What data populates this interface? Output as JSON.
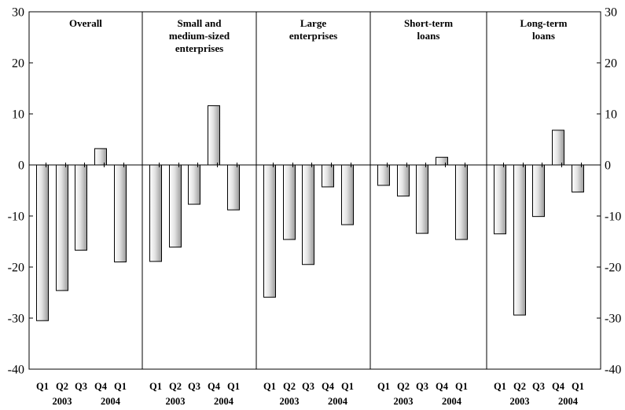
{
  "chart_data": {
    "type": "bar",
    "categories": [
      "Q1",
      "Q2",
      "Q3",
      "Q4",
      "Q1"
    ],
    "year_labels": [
      "2003",
      "2004"
    ],
    "ylim": [
      -40,
      30
    ],
    "yticks": [
      30,
      20,
      10,
      0,
      -10,
      -20,
      -30,
      -40
    ],
    "grid": false,
    "panels": [
      {
        "title": [
          "Overall"
        ],
        "values": [
          -30.5,
          -24.6,
          -16.7,
          3.2,
          -19.0
        ]
      },
      {
        "title": [
          "Small and",
          "medium-sized",
          "enterprises"
        ],
        "values": [
          -18.9,
          -16.1,
          -7.7,
          11.6,
          -8.8
        ]
      },
      {
        "title": [
          "Large",
          "enterprises"
        ],
        "values": [
          -25.9,
          -14.6,
          -19.5,
          -4.3,
          -11.7
        ]
      },
      {
        "title": [
          "Short-term",
          "loans"
        ],
        "values": [
          -4.0,
          -6.1,
          -13.4,
          1.5,
          -14.6
        ]
      },
      {
        "title": [
          "Long-term",
          "loans"
        ],
        "values": [
          -13.5,
          -29.4,
          -10.1,
          6.8,
          -5.3
        ]
      }
    ]
  }
}
